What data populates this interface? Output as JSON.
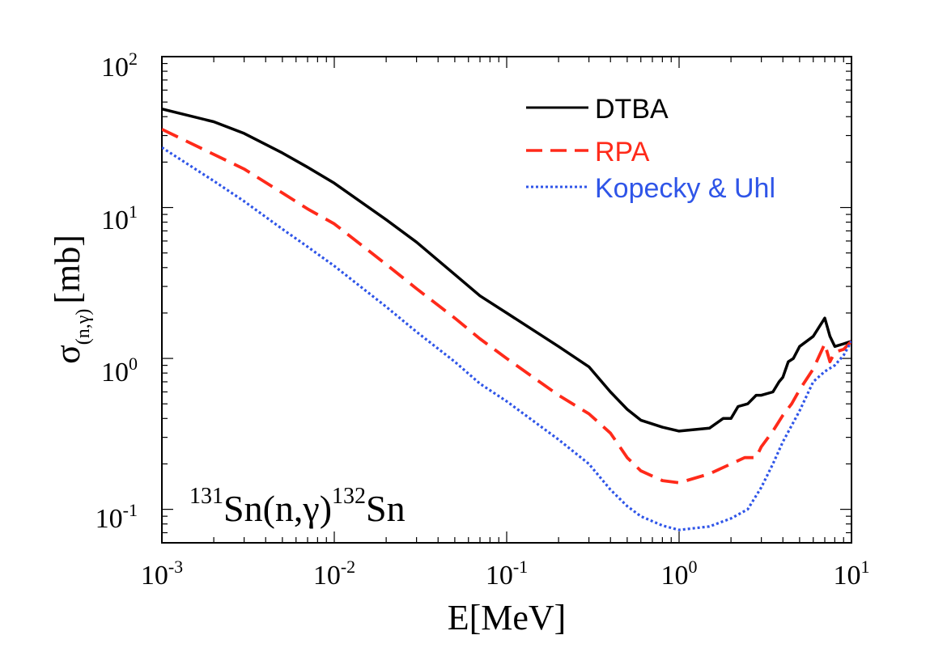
{
  "chart_data": {
    "type": "line",
    "xscale": "log",
    "yscale": "log",
    "xlim": [
      0.001,
      10
    ],
    "ylim": [
      0.06,
      100
    ],
    "xlabel": "E[MeV]",
    "ylabel": {
      "main": "σ",
      "sub": "(n,γ)",
      "unit": "[mb]"
    },
    "x_ticks": [
      {
        "base": "10",
        "exp": "-3",
        "value": 0.001
      },
      {
        "base": "10",
        "exp": "-2",
        "value": 0.01
      },
      {
        "base": "10",
        "exp": "-1",
        "value": 0.1
      },
      {
        "base": "10",
        "exp": "0",
        "value": 1
      },
      {
        "base": "10",
        "exp": "1",
        "value": 10
      }
    ],
    "y_ticks": [
      {
        "base": "10",
        "exp": "-1",
        "value": 0.1
      },
      {
        "base": "10",
        "exp": "0",
        "value": 1
      },
      {
        "base": "10",
        "exp": "1",
        "value": 10
      },
      {
        "base": "10",
        "exp": "2",
        "value": 100
      }
    ],
    "annotation": {
      "sup1": "131",
      "text1": "Sn(n,γ)",
      "sup2": "132",
      "text2": "Sn"
    },
    "legend_position": "top-right",
    "series": [
      {
        "name": "DTBA",
        "color": "#000000",
        "dash": "solid",
        "points": [
          [
            0.001,
            45
          ],
          [
            0.002,
            37
          ],
          [
            0.003,
            31
          ],
          [
            0.005,
            23
          ],
          [
            0.007,
            18.5
          ],
          [
            0.01,
            14.5
          ],
          [
            0.02,
            8.3
          ],
          [
            0.03,
            5.9
          ],
          [
            0.05,
            3.6
          ],
          [
            0.07,
            2.6
          ],
          [
            0.1,
            2.0
          ],
          [
            0.2,
            1.2
          ],
          [
            0.3,
            0.88
          ],
          [
            0.4,
            0.6
          ],
          [
            0.5,
            0.46
          ],
          [
            0.6,
            0.39
          ],
          [
            0.8,
            0.35
          ],
          [
            1.0,
            0.33
          ],
          [
            1.5,
            0.345
          ],
          [
            1.8,
            0.4
          ],
          [
            2.0,
            0.4
          ],
          [
            2.2,
            0.48
          ],
          [
            2.5,
            0.5
          ],
          [
            2.8,
            0.57
          ],
          [
            3.0,
            0.57
          ],
          [
            3.5,
            0.6
          ],
          [
            3.8,
            0.7
          ],
          [
            4.0,
            0.75
          ],
          [
            4.3,
            0.95
          ],
          [
            4.6,
            1.0
          ],
          [
            5.0,
            1.2
          ],
          [
            6.0,
            1.4
          ],
          [
            7.0,
            1.85
          ],
          [
            7.5,
            1.4
          ],
          [
            8.0,
            1.2
          ],
          [
            9.0,
            1.25
          ],
          [
            10.0,
            1.3
          ]
        ]
      },
      {
        "name": "RPA",
        "color": "#ff2a1a",
        "dash": "long-dash",
        "points": [
          [
            0.001,
            33
          ],
          [
            0.002,
            22.5
          ],
          [
            0.003,
            18
          ],
          [
            0.005,
            12.5
          ],
          [
            0.007,
            9.8
          ],
          [
            0.01,
            7.8
          ],
          [
            0.02,
            4.2
          ],
          [
            0.03,
            2.9
          ],
          [
            0.05,
            1.85
          ],
          [
            0.07,
            1.35
          ],
          [
            0.1,
            1.0
          ],
          [
            0.2,
            0.57
          ],
          [
            0.3,
            0.43
          ],
          [
            0.4,
            0.32
          ],
          [
            0.5,
            0.22
          ],
          [
            0.6,
            0.18
          ],
          [
            0.8,
            0.155
          ],
          [
            1.0,
            0.15
          ],
          [
            1.5,
            0.172
          ],
          [
            2.0,
            0.2
          ],
          [
            2.4,
            0.22
          ],
          [
            2.8,
            0.22
          ],
          [
            3.0,
            0.26
          ],
          [
            3.5,
            0.33
          ],
          [
            4.0,
            0.42
          ],
          [
            4.5,
            0.5
          ],
          [
            5.0,
            0.62
          ],
          [
            6.0,
            0.85
          ],
          [
            7.0,
            1.25
          ],
          [
            7.5,
            0.95
          ],
          [
            8.0,
            1.1
          ],
          [
            9.0,
            1.15
          ],
          [
            10.0,
            1.3
          ]
        ]
      },
      {
        "name": "Kopecky & Uhl",
        "color": "#2f55e8",
        "dash": "dotted",
        "points": [
          [
            0.001,
            25
          ],
          [
            0.002,
            15
          ],
          [
            0.003,
            11
          ],
          [
            0.005,
            7.2
          ],
          [
            0.007,
            5.5
          ],
          [
            0.01,
            4.1
          ],
          [
            0.02,
            2.2
          ],
          [
            0.03,
            1.5
          ],
          [
            0.05,
            0.95
          ],
          [
            0.07,
            0.68
          ],
          [
            0.1,
            0.52
          ],
          [
            0.2,
            0.29
          ],
          [
            0.3,
            0.2
          ],
          [
            0.4,
            0.135
          ],
          [
            0.5,
            0.105
          ],
          [
            0.6,
            0.09
          ],
          [
            0.8,
            0.078
          ],
          [
            1.0,
            0.073
          ],
          [
            1.5,
            0.077
          ],
          [
            2.0,
            0.087
          ],
          [
            2.5,
            0.1
          ],
          [
            3.0,
            0.14
          ],
          [
            3.5,
            0.2
          ],
          [
            4.0,
            0.28
          ],
          [
            5.0,
            0.45
          ],
          [
            6.0,
            0.7
          ],
          [
            7.0,
            0.82
          ],
          [
            8.0,
            0.9
          ],
          [
            9.0,
            1.05
          ],
          [
            10.0,
            1.3
          ]
        ]
      }
    ]
  }
}
